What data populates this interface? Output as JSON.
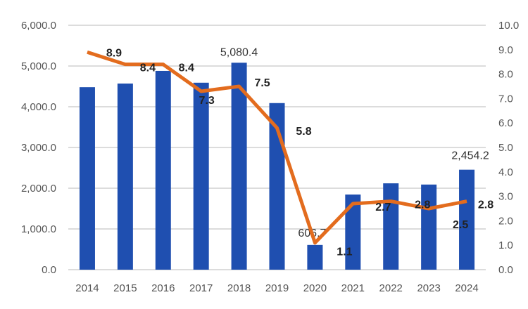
{
  "chart_data": {
    "type": "bar+line",
    "categories": [
      "2014",
      "2015",
      "2016",
      "2017",
      "2018",
      "2019",
      "2020",
      "2021",
      "2022",
      "2023",
      "2024"
    ],
    "series": [
      {
        "type": "bar",
        "axis": "left",
        "color": "#1f4fb0",
        "values": [
          4480,
          4570,
          4880,
          4590,
          5080.4,
          4090,
          606.7,
          1845,
          2120,
          2090,
          2454.2
        ],
        "data_labels": {
          "4": "5,080.4",
          "6": "606.7",
          "10": "2,454.2"
        }
      },
      {
        "type": "line",
        "axis": "right",
        "color": "#e36c1e",
        "values": [
          8.9,
          8.4,
          8.4,
          7.3,
          7.5,
          5.8,
          1.1,
          2.7,
          2.8,
          2.5,
          2.8
        ],
        "data_labels": [
          "8.9",
          "8.4",
          "8.4",
          "7.3",
          "7.5",
          "5.8",
          "1.1",
          "2.7",
          "2.8",
          "2.5",
          "2.8"
        ]
      }
    ],
    "left_axis": {
      "ylim": [
        0,
        6000
      ],
      "ticks": [
        "0.0",
        "1,000.0",
        "2,000.0",
        "3,000.0",
        "4,000.0",
        "5,000.0",
        "6,000.0"
      ]
    },
    "right_axis": {
      "ylim": [
        0,
        10
      ],
      "ticks": [
        "0.0",
        "1.0",
        "2.0",
        "3.0",
        "4.0",
        "5.0",
        "6.0",
        "7.0",
        "8.0",
        "9.0",
        "10.0"
      ]
    },
    "grid": true,
    "gridline_color": "#d0d0d0"
  }
}
